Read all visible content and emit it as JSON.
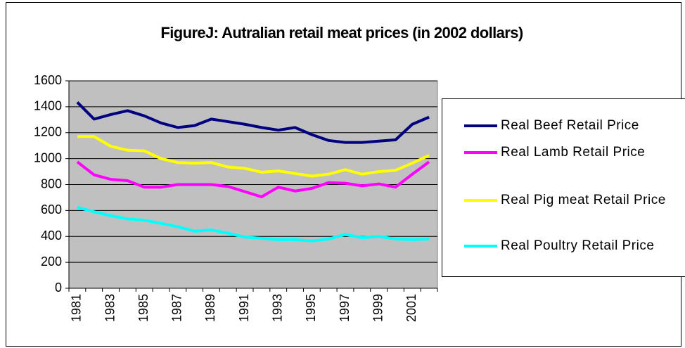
{
  "chart_data": {
    "type": "line",
    "title": "FigureJ: Autralian retail meat prices (in 2002 dollars)",
    "categories": [
      "1981",
      null,
      "1983",
      null,
      "1985",
      null,
      "1987",
      null,
      "1989",
      null,
      "1991",
      null,
      "1993",
      null,
      "1995",
      null,
      "1997",
      null,
      "1999",
      null,
      "2001",
      null
    ],
    "series": [
      {
        "name": "Real Beef Retail Price",
        "color": "#000080",
        "values": [
          1435,
          1305,
          1340,
          1370,
          1330,
          1275,
          1240,
          1255,
          1305,
          1285,
          1265,
          1240,
          1220,
          1240,
          1185,
          1140,
          1125,
          1125,
          1135,
          1145,
          1265,
          1320
        ]
      },
      {
        "name": "Real Lamb Retail Price",
        "color": "#ff00ff",
        "values": [
          975,
          875,
          840,
          830,
          780,
          780,
          800,
          800,
          800,
          785,
          745,
          705,
          780,
          750,
          770,
          815,
          810,
          790,
          805,
          780,
          880,
          975
        ]
      },
      {
        "name": "Real Pig meat Retail Price",
        "color": "#ffff00",
        "values": [
          1170,
          1170,
          1095,
          1065,
          1060,
          1000,
          970,
          965,
          970,
          935,
          925,
          895,
          905,
          885,
          865,
          880,
          915,
          880,
          900,
          910,
          965,
          1025
        ]
      },
      {
        "name": "Real Poultry Retail Price",
        "color": "#00ffff",
        "values": [
          625,
          590,
          560,
          535,
          525,
          500,
          475,
          440,
          450,
          425,
          395,
          385,
          375,
          375,
          365,
          380,
          415,
          390,
          400,
          380,
          375,
          380
        ]
      }
    ],
    "ylim": [
      0,
      1600
    ],
    "yticks": [
      0,
      200,
      400,
      600,
      800,
      1000,
      1200,
      1400,
      1600
    ],
    "grid": true,
    "plot_background": "#c0c0c0",
    "legend": "right"
  }
}
